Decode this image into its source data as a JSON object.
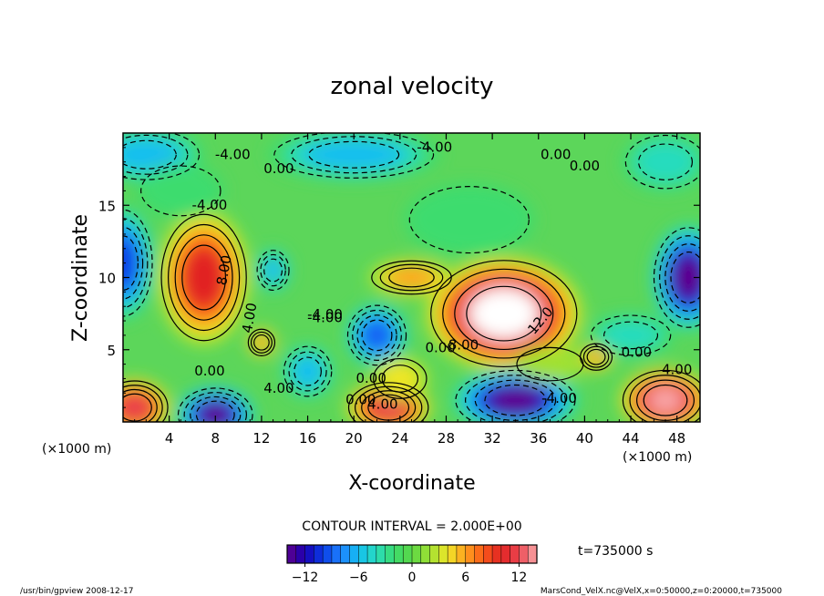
{
  "chart_data": {
    "type": "heatmap",
    "title": "zonal velocity",
    "xlabel": "X-coordinate",
    "ylabel": "Z-coordinate",
    "x_unit": "(×1000 m)",
    "y_unit": "(×1000 m)",
    "xlim": [
      0,
      50
    ],
    "ylim": [
      0,
      20
    ],
    "x_ticks": [
      "4",
      "8",
      "12",
      "16",
      "20",
      "24",
      "28",
      "32",
      "36",
      "40",
      "44",
      "48"
    ],
    "y_ticks": [
      "5",
      "10",
      "15"
    ],
    "contour_interval_text": "CONTOUR INTERVAL = 2.000E+00",
    "time_text": "t=735000 s",
    "colorbar_ticks": [
      "−12",
      "−6",
      "0",
      "6",
      "12"
    ],
    "colorbar_range": [
      -14,
      14
    ],
    "contour_labels": [
      "-4.00",
      "0.00",
      "-4.00",
      "0.00",
      "-4.00",
      "8.00",
      "4.00",
      "-4.00",
      "0.00",
      "0.00",
      "4.00",
      "8.00",
      "12.0",
      "0.00",
      "0.00",
      "4.00",
      "-4.00",
      "4.00",
      "0.00",
      "0.00",
      "-4.00"
    ],
    "features": [
      {
        "x": 7,
        "z": 10,
        "value": 10
      },
      {
        "x": 33,
        "z": 7.5,
        "value": 16
      },
      {
        "x": 49,
        "z": 10,
        "value": -14
      },
      {
        "x": 0,
        "z": 11,
        "value": -10
      },
      {
        "x": 22,
        "z": 6,
        "value": -9
      },
      {
        "x": 8,
        "z": 0.5,
        "value": -14
      },
      {
        "x": 34,
        "z": 1.5,
        "value": -14
      },
      {
        "x": 47,
        "z": 1.5,
        "value": 14
      },
      {
        "x": 23,
        "z": 1,
        "value": 12
      },
      {
        "x": 1,
        "z": 1,
        "value": 12
      },
      {
        "x": 13,
        "z": 10.5,
        "value": -6
      },
      {
        "x": 12,
        "z": 5.5,
        "value": 6
      },
      {
        "x": 41,
        "z": 4.5,
        "value": 6
      },
      {
        "x": 25,
        "z": 10,
        "value": 6
      },
      {
        "x": 30,
        "z": 14,
        "value": -2
      },
      {
        "x": 20,
        "z": 18.5,
        "value": -6
      },
      {
        "x": 2,
        "z": 18.5,
        "value": -6
      },
      {
        "x": 47,
        "z": 18,
        "value": -4
      },
      {
        "x": 5,
        "z": 16,
        "value": -2
      },
      {
        "x": 16,
        "z": 3.5,
        "value": -6
      },
      {
        "x": 24,
        "z": 3,
        "value": 4
      },
      {
        "x": 44,
        "z": 6,
        "value": -4
      },
      {
        "x": 37,
        "z": 4,
        "value": 2
      }
    ]
  },
  "footer": {
    "left": "/usr/bin/gpview  2008-12-17",
    "right": "MarsCond_VelX.nc@VelX,x=0:50000,z=0:20000,t=735000"
  }
}
